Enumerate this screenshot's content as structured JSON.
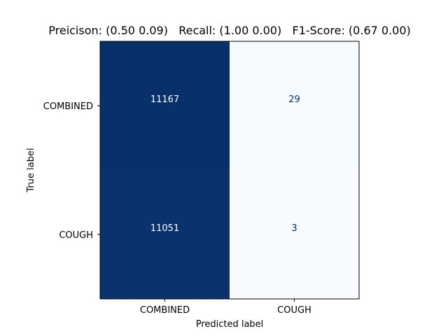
{
  "chart_data": {
    "type": "heatmap",
    "title": "Preicison: (0.50 0.09)   Recall: (1.00 0.00)   F1-Score: (0.67 0.00)",
    "xlabel": "Predicted label",
    "ylabel": "True label",
    "x_categories": [
      "COMBINED",
      "COUGH"
    ],
    "y_categories": [
      "COMBINED",
      "COUGH"
    ],
    "values": [
      [
        11167,
        29
      ],
      [
        11051,
        3
      ]
    ],
    "cell_labels": [
      [
        "11167",
        "29"
      ],
      [
        "11051",
        "3"
      ]
    ],
    "colormap": "Blues",
    "colors": {
      "high": "#08306b",
      "low": "#f7fbff",
      "text_on_dark": "#ffffff",
      "text_on_light": "#08306b"
    }
  }
}
